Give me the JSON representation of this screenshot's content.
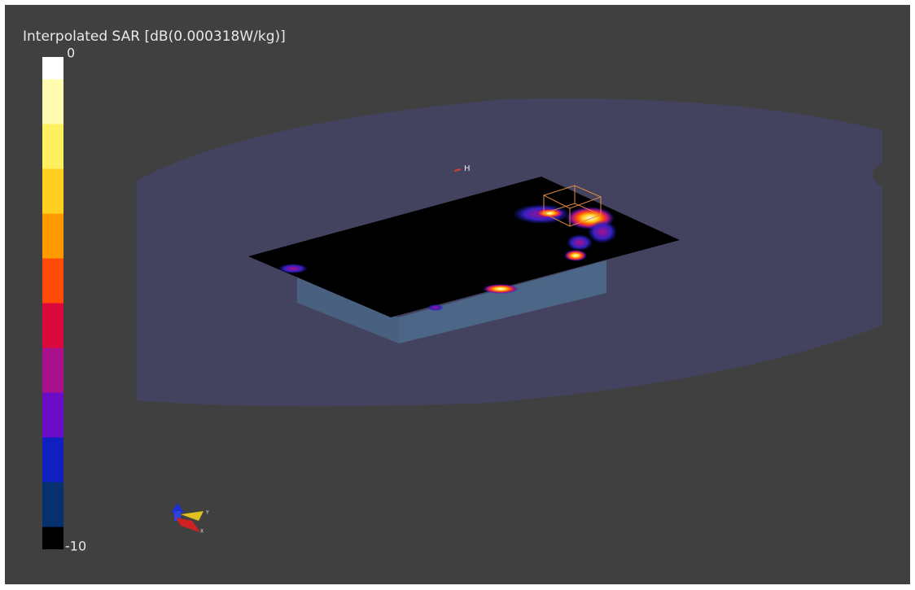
{
  "colorbar": {
    "title": "Interpolated SAR [dB(0.000318W/kg)]",
    "max_label": "0",
    "min_label": "-10",
    "colors": [
      "#ffffff",
      "#fffbb0",
      "#fff060",
      "#ffd020",
      "#ff9a00",
      "#ff4a08",
      "#dc0a3c",
      "#a8108c",
      "#6a0cc8",
      "#1020c0",
      "#06306e",
      "#000000"
    ]
  },
  "scene": {
    "marker_label": "H",
    "axis_y_label": "Y",
    "axis_x_label": "X"
  }
}
